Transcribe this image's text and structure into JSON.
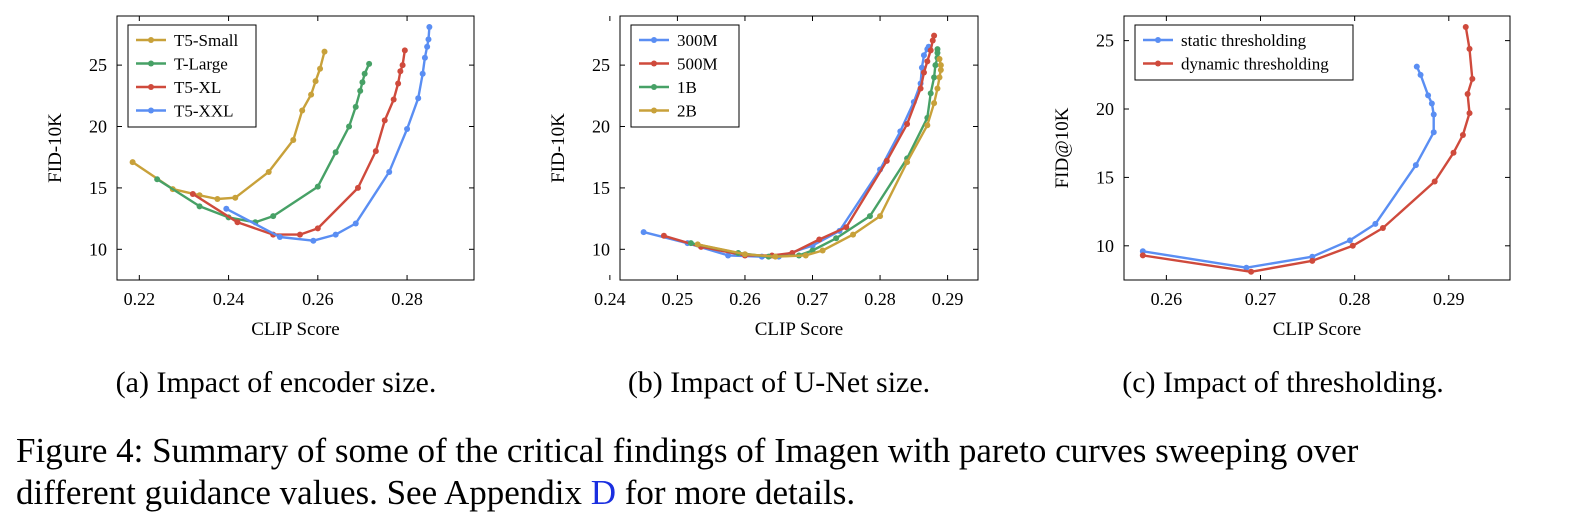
{
  "colors": {
    "blue": "#5a8ef3",
    "red": "#cf4a3c",
    "green": "#47a166",
    "gold": "#c8a13a",
    "link": "#1a2fe0"
  },
  "chart_data": [
    {
      "type": "line",
      "title": "",
      "xlabel": "CLIP Score",
      "ylabel": "FID-10K",
      "caption": "(a) Impact of encoder size.",
      "xlim": [
        0.215,
        0.295
      ],
      "ylim": [
        7.5,
        29
      ],
      "xticks": [
        0.22,
        0.24,
        0.26,
        0.28
      ],
      "xtick_labels": [
        "0.22",
        "0.24",
        "0.26",
        "0.28"
      ],
      "yticks": [
        10,
        15,
        20,
        25
      ],
      "ytick_labels": [
        "10",
        "15",
        "20",
        "25"
      ],
      "legend_position": "top-left",
      "series": [
        {
          "name": "T5-Small",
          "color": "gold",
          "x": [
            0.2185,
            0.2275,
            0.2335,
            0.2375,
            0.2415,
            0.249,
            0.2545,
            0.2565,
            0.2585,
            0.2595,
            0.2605,
            0.2615
          ],
          "y": [
            17.1,
            14.9,
            14.4,
            14.1,
            14.2,
            16.3,
            18.9,
            21.3,
            22.6,
            23.7,
            24.7,
            26.1
          ]
        },
        {
          "name": "T-Large",
          "color": "green",
          "x": [
            0.224,
            0.2335,
            0.24,
            0.246,
            0.25,
            0.26,
            0.264,
            0.267,
            0.2685,
            0.2695,
            0.27,
            0.2705,
            0.2715
          ],
          "y": [
            15.7,
            13.5,
            12.6,
            12.2,
            12.7,
            15.1,
            17.9,
            20.0,
            21.6,
            22.9,
            23.6,
            24.3,
            25.1
          ]
        },
        {
          "name": "T5-XL",
          "color": "red",
          "x": [
            0.232,
            0.242,
            0.25,
            0.256,
            0.26,
            0.269,
            0.273,
            0.275,
            0.277,
            0.278,
            0.2785,
            0.279,
            0.2795
          ],
          "y": [
            14.5,
            12.2,
            11.2,
            11.2,
            11.7,
            15.0,
            18.0,
            20.5,
            22.2,
            23.5,
            24.5,
            25.0,
            26.2
          ]
        },
        {
          "name": "T5-XXL",
          "color": "blue",
          "x": [
            0.2395,
            0.2515,
            0.259,
            0.264,
            0.2685,
            0.276,
            0.28,
            0.2825,
            0.2835,
            0.284,
            0.2845,
            0.2848,
            0.285
          ],
          "y": [
            13.3,
            11.0,
            10.7,
            11.2,
            12.1,
            16.3,
            19.8,
            22.3,
            24.3,
            25.6,
            26.5,
            27.1,
            28.1
          ]
        }
      ]
    },
    {
      "type": "line",
      "title": "",
      "xlabel": "CLIP Score",
      "ylabel": "FID-10K",
      "caption": "(b) Impact of U-Net size.",
      "xlim": [
        0.2415,
        0.2945
      ],
      "ylim": [
        7.5,
        29
      ],
      "xticks": [
        0.24,
        0.25,
        0.26,
        0.27,
        0.28,
        0.29
      ],
      "xtick_labels": [
        "0.24",
        "0.25",
        "0.26",
        "0.27",
        "0.28",
        "0.29"
      ],
      "yticks": [
        10,
        15,
        20,
        25
      ],
      "ytick_labels": [
        "10",
        "15",
        "20",
        "25"
      ],
      "legend_position": "top-left",
      "series": [
        {
          "name": "300M",
          "color": "blue",
          "x": [
            0.245,
            0.2515,
            0.2575,
            0.2625,
            0.265,
            0.27,
            0.274,
            0.28,
            0.283,
            0.285,
            0.286,
            0.2862,
            0.2865,
            0.287,
            0.2872
          ],
          "y": [
            11.4,
            10.5,
            9.5,
            9.4,
            9.4,
            10.3,
            11.5,
            16.5,
            19.6,
            22.0,
            23.5,
            24.8,
            25.8,
            26.3,
            26.5
          ]
        },
        {
          "name": "500M",
          "color": "red",
          "x": [
            0.248,
            0.2535,
            0.26,
            0.264,
            0.267,
            0.271,
            0.275,
            0.281,
            0.284,
            0.286,
            0.2865,
            0.287,
            0.2875,
            0.2878,
            0.288
          ],
          "y": [
            11.1,
            10.2,
            9.5,
            9.5,
            9.7,
            10.8,
            11.8,
            17.2,
            20.2,
            23.1,
            24.4,
            25.3,
            26.2,
            27.0,
            27.4
          ]
        },
        {
          "name": "1B",
          "color": "green",
          "x": [
            0.252,
            0.259,
            0.2635,
            0.268,
            0.27,
            0.2735,
            0.2785,
            0.284,
            0.287,
            0.2875,
            0.288,
            0.2882,
            0.2885,
            0.2885,
            0.2885
          ],
          "y": [
            10.5,
            9.7,
            9.4,
            9.5,
            9.9,
            10.9,
            12.7,
            17.4,
            20.7,
            22.7,
            24.0,
            25.0,
            25.6,
            26.0,
            26.3
          ]
        },
        {
          "name": "2B",
          "color": "gold",
          "x": [
            0.253,
            0.26,
            0.2645,
            0.269,
            0.2715,
            0.276,
            0.28,
            0.284,
            0.287,
            0.288,
            0.2885,
            0.2888,
            0.289,
            0.289,
            0.2888
          ],
          "y": [
            10.4,
            9.6,
            9.4,
            9.5,
            9.9,
            11.2,
            12.7,
            17.1,
            20.1,
            21.9,
            23.1,
            24.0,
            24.6,
            25.0,
            25.5
          ]
        }
      ]
    },
    {
      "type": "line",
      "title": "",
      "xlabel": "CLIP Score",
      "ylabel": "FID@10K",
      "caption": "(c) Impact of thresholding.",
      "xlim": [
        0.2555,
        0.2965
      ],
      "ylim": [
        7.5,
        26.8
      ],
      "xticks": [
        0.26,
        0.27,
        0.28,
        0.29
      ],
      "xtick_labels": [
        "0.26",
        "0.27",
        "0.28",
        "0.29"
      ],
      "yticks": [
        10,
        15,
        20,
        25
      ],
      "ytick_labels": [
        "10",
        "15",
        "20",
        "25"
      ],
      "legend_position": "top-left",
      "series": [
        {
          "name": "static thresholding",
          "color": "blue",
          "x": [
            0.2575,
            0.2685,
            0.2755,
            0.2795,
            0.2822,
            0.2865,
            0.2884,
            0.2884,
            0.2882,
            0.2878,
            0.287,
            0.2866
          ],
          "y": [
            9.6,
            8.4,
            9.2,
            10.4,
            11.6,
            15.9,
            18.3,
            19.6,
            20.4,
            21.0,
            22.5,
            23.1
          ]
        },
        {
          "name": "dynamic thresholding",
          "color": "red",
          "x": [
            0.2575,
            0.269,
            0.2755,
            0.2798,
            0.283,
            0.2885,
            0.2905,
            0.2915,
            0.2922,
            0.292,
            0.2925,
            0.2922,
            0.2918
          ],
          "y": [
            9.3,
            8.1,
            8.9,
            10.0,
            11.3,
            14.7,
            16.8,
            18.1,
            19.7,
            21.1,
            22.2,
            24.4,
            26.0
          ]
        }
      ]
    }
  ],
  "figure_caption": {
    "line1": "Figure 4: Summary of some of the critical findings of Imagen with pareto curves sweeping over",
    "line2_before": "different guidance values. See Appendix ",
    "line2_link": "D",
    "line2_after": " for more details."
  }
}
